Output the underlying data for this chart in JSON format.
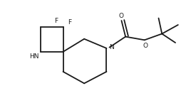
{
  "background": "#ffffff",
  "line_color": "#1a1a1a",
  "line_width": 1.3,
  "font_size": 6.5,
  "font_color": "#1a1a1a",
  "HN_label": "HN",
  "N_label": "N",
  "O_label": "O",
  "F1_label": "F",
  "F2_label": "F",
  "figsize": [
    2.68,
    1.52
  ],
  "dpi": 100,
  "xlim": [
    0,
    8.5
  ],
  "ylim": [
    0,
    4.8
  ]
}
